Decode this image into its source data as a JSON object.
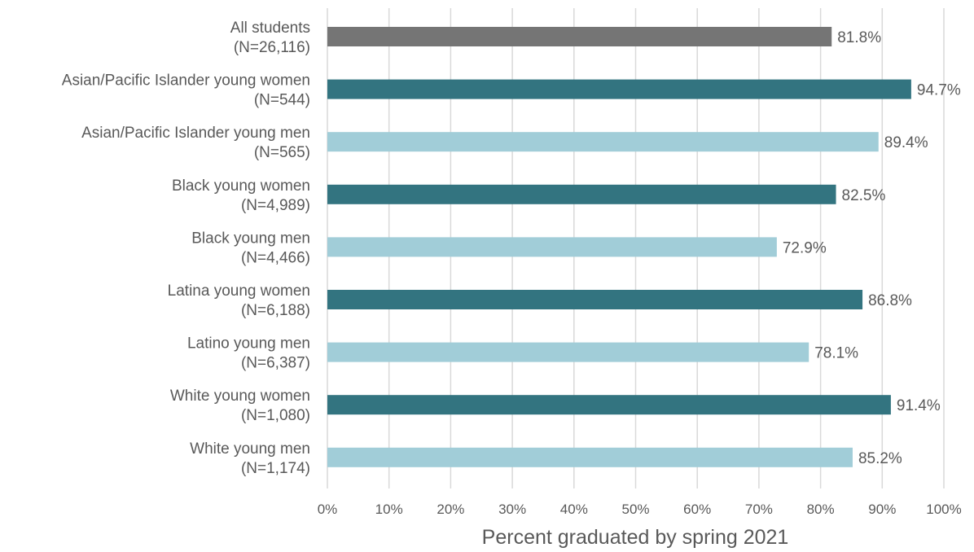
{
  "chart_data": {
    "type": "bar",
    "orientation": "horizontal",
    "title": "",
    "xlabel": "Percent graduated by spring 2021",
    "ylabel": "",
    "xlim": [
      0,
      100
    ],
    "grid": true,
    "legend": "none",
    "x_ticks": [
      "0%",
      "10%",
      "20%",
      "30%",
      "40%",
      "50%",
      "60%",
      "70%",
      "80%",
      "90%",
      "100%"
    ],
    "categories": [
      {
        "line1": "All students",
        "line2": "(N=26,116)"
      },
      {
        "line1": "Asian/Pacific Islander young women",
        "line2": "(N=544)"
      },
      {
        "line1": "Asian/Pacific Islander young men",
        "line2": "(N=565)"
      },
      {
        "line1": "Black young women",
        "line2": "(N=4,989)"
      },
      {
        "line1": "Black young men",
        "line2": "(N=4,466)"
      },
      {
        "line1": "Latina young women",
        "line2": "(N=6,188)"
      },
      {
        "line1": "Latino young men",
        "line2": "(N=6,387)"
      },
      {
        "line1": "White young women",
        "line2": "(N=1,080)"
      },
      {
        "line1": "White young men",
        "line2": "(N=1,174)"
      }
    ],
    "values": [
      81.8,
      94.7,
      89.4,
      82.5,
      72.9,
      86.8,
      78.1,
      91.4,
      85.2
    ],
    "value_labels": [
      "81.8%",
      "94.7%",
      "89.4%",
      "82.5%",
      "72.9%",
      "86.8%",
      "78.1%",
      "91.4%",
      "85.2%"
    ],
    "bar_colors": [
      "#757575",
      "#337480",
      "#a1cdd8",
      "#337480",
      "#a1cdd8",
      "#337480",
      "#a1cdd8",
      "#337480",
      "#a1cdd8"
    ],
    "colors": {
      "grid": "#d9d9d9",
      "text": "#595959"
    }
  }
}
